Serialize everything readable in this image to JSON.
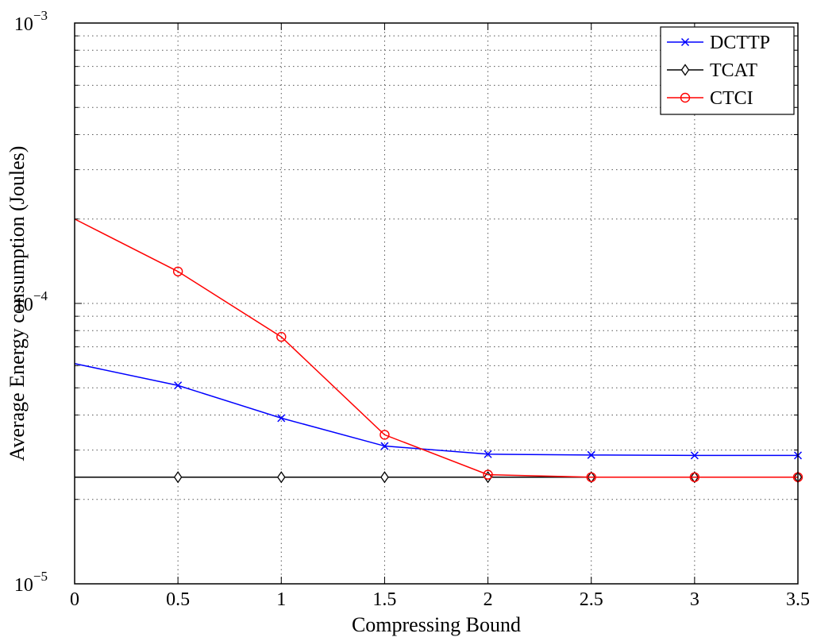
{
  "chart_data": {
    "type": "line",
    "title": "",
    "xlabel": "Compressing Bound",
    "ylabel": "Average Energy consumption (Joules)",
    "xlim": [
      0,
      3.5
    ],
    "ylim": [
      1e-05,
      0.001
    ],
    "y_scale": "log",
    "grid": true,
    "legend_position": "top-right",
    "x_ticks": [
      {
        "value": 0,
        "label": "0"
      },
      {
        "value": 0.5,
        "label": "0.5"
      },
      {
        "value": 1,
        "label": "1"
      },
      {
        "value": 1.5,
        "label": "1.5"
      },
      {
        "value": 2,
        "label": "2"
      },
      {
        "value": 2.5,
        "label": "2.5"
      },
      {
        "value": 3,
        "label": "3"
      },
      {
        "value": 3.5,
        "label": "3.5"
      }
    ],
    "y_ticks": [
      {
        "value": 1e-05,
        "base": "10",
        "exp": "−5"
      },
      {
        "value": 0.0001,
        "base": "10",
        "exp": "−4"
      },
      {
        "value": 0.001,
        "base": "10",
        "exp": "−3"
      }
    ],
    "x": [
      0,
      0.5,
      1,
      1.5,
      2,
      2.5,
      3,
      3.5
    ],
    "series": [
      {
        "name": "DCTTP",
        "color": "#0000ff",
        "marker": "x",
        "values": [
          6.1e-05,
          5.1e-05,
          3.9e-05,
          3.1e-05,
          2.9e-05,
          2.88e-05,
          2.87e-05,
          2.87e-05
        ]
      },
      {
        "name": "TCAT",
        "color": "#000000",
        "marker": "diamond",
        "values": [
          2.4e-05,
          2.4e-05,
          2.4e-05,
          2.4e-05,
          2.4e-05,
          2.4e-05,
          2.4e-05,
          2.4e-05
        ]
      },
      {
        "name": "CTCI",
        "color": "#ff0000",
        "marker": "circle",
        "values": [
          0.0002,
          0.00013,
          7.6e-05,
          3.4e-05,
          2.45e-05,
          2.4e-05,
          2.4e-05,
          2.4e-05
        ]
      }
    ]
  }
}
